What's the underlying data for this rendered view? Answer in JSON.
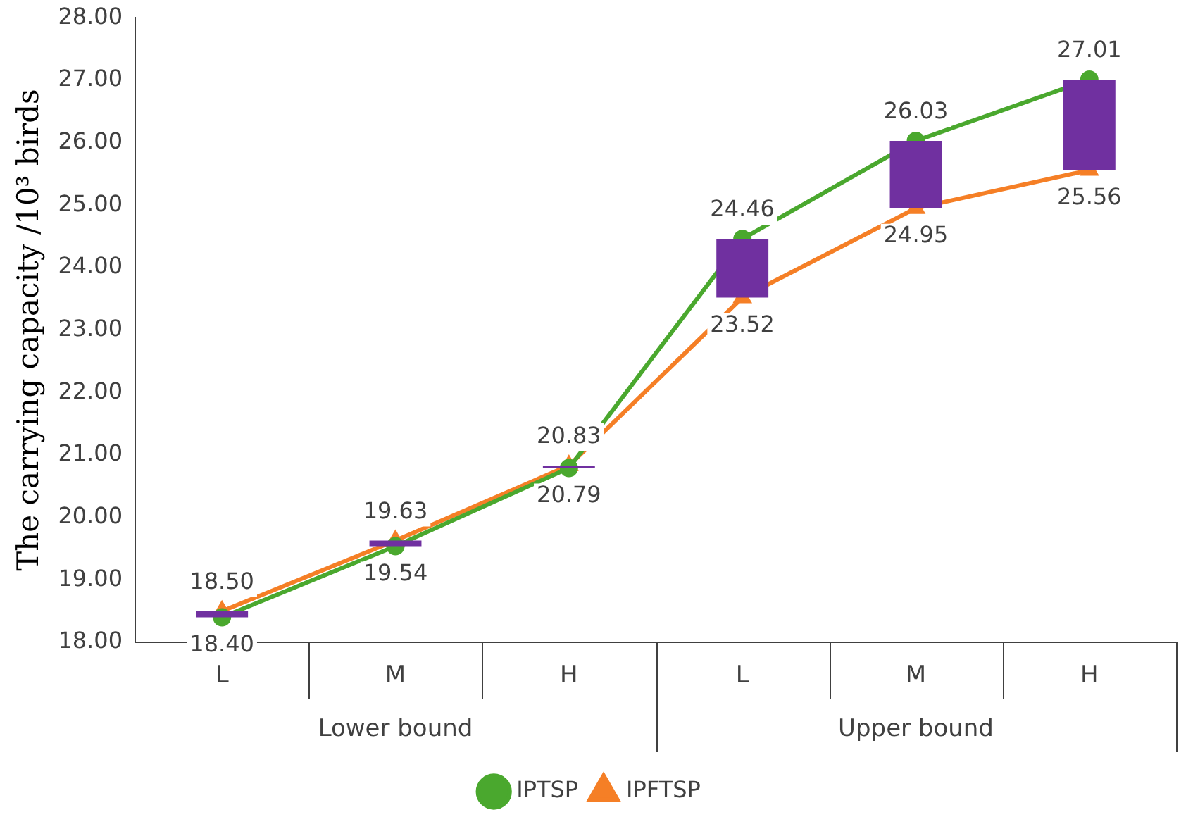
{
  "chart_data": {
    "type": "line",
    "ylabel": "The carrying capacity /10³ birds",
    "categories": [
      "L",
      "M",
      "H",
      "L",
      "M",
      "H"
    ],
    "series": [
      {
        "name": "IPTSP",
        "color": "#4aa82e",
        "marker": "circle",
        "values": [
          18.4,
          19.54,
          20.79,
          24.46,
          26.03,
          27.01
        ],
        "value_labels": [
          "18.40",
          "19.54",
          "20.79",
          "24.46",
          "26.03",
          "27.01"
        ]
      },
      {
        "name": "IPFTSP",
        "color": "#f57f26",
        "marker": "triangle",
        "values": [
          18.5,
          19.63,
          20.83,
          23.52,
          24.95,
          25.56
        ],
        "value_labels": [
          "18.50",
          "19.63",
          "20.83",
          "23.52",
          "24.95",
          "25.56"
        ]
      },
      {
        "type": "bar",
        "color": "#7030a0",
        "base": [
          18.4,
          19.54,
          20.79,
          23.52,
          24.95,
          25.56
        ],
        "values": [
          0.1,
          0.09,
          0.04,
          0.94,
          1.08,
          1.45
        ]
      }
    ],
    "ylim": [
      18,
      28
    ],
    "yticks": [
      {
        "value": 18,
        "label": "18.00"
      },
      {
        "value": 19,
        "label": "19.00"
      },
      {
        "value": 20,
        "label": "20.00"
      },
      {
        "value": 21,
        "label": "21.00"
      },
      {
        "value": 22,
        "label": "22.00"
      },
      {
        "value": 23,
        "label": "23.00"
      },
      {
        "value": 24,
        "label": "24.00"
      },
      {
        "value": 25,
        "label": "25.00"
      },
      {
        "value": 26,
        "label": "26.00"
      },
      {
        "value": 27,
        "label": "27.00"
      },
      {
        "value": 28,
        "label": "28.00"
      }
    ],
    "annotations": [
      "Lower bound",
      "Upper bound"
    ],
    "grid": false,
    "legend": "bottom"
  }
}
